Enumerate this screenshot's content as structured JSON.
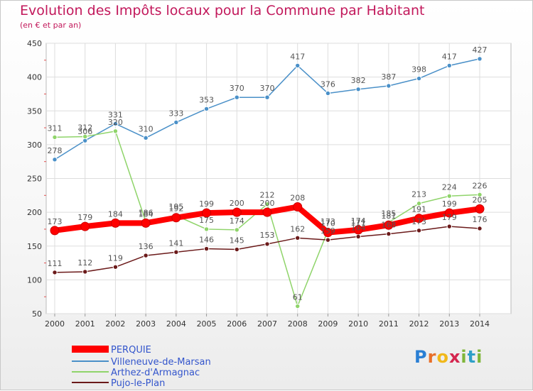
{
  "header": {
    "title": "Evolution des Impôts locaux pour la Commune par Habitant",
    "subtitle": "(en € et par an)"
  },
  "logo": {
    "text": "Proxiti",
    "letters": [
      "P",
      "r",
      "o",
      "x",
      "i",
      "t",
      "i"
    ]
  },
  "chart_data": {
    "type": "line",
    "title": "Evolution des Impôts locaux pour la Commune par Habitant",
    "subtitle": "(en € et par an)",
    "xlabel": "",
    "ylabel": "",
    "x": [
      2000,
      2001,
      2002,
      2003,
      2004,
      2005,
      2006,
      2007,
      2008,
      2009,
      2010,
      2011,
      2012,
      2013,
      2014
    ],
    "ylim": [
      50,
      450
    ],
    "yticks": [
      50,
      100,
      150,
      200,
      250,
      300,
      350,
      400,
      450
    ],
    "grid": true,
    "legend_position": "bottom-left",
    "series": [
      {
        "name": "PERQUIE",
        "color": "#ff0000",
        "values": [
          173,
          179,
          184,
          184,
          192,
          199,
          200,
          200,
          208,
          170,
          174,
          181,
          191,
          199,
          205
        ]
      },
      {
        "name": "Villeneuve-de-Marsan",
        "color": "#4a90c8",
        "values": [
          278,
          306,
          331,
          310,
          333,
          353,
          370,
          370,
          417,
          376,
          382,
          387,
          398,
          417,
          427
        ]
      },
      {
        "name": "Arthez-d'Armagnac",
        "color": "#8fd46a",
        "values": [
          311,
          312,
          320,
          186,
          195,
          175,
          174,
          212,
          61,
          173,
          171,
          185,
          213,
          224,
          226
        ]
      },
      {
        "name": "Pujo-le-Plan",
        "color": "#6b1a1a",
        "values": [
          111,
          112,
          119,
          136,
          141,
          146,
          145,
          153,
          162,
          159,
          164,
          168,
          173,
          179,
          176
        ]
      }
    ]
  }
}
